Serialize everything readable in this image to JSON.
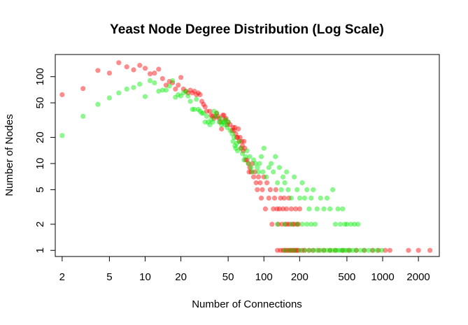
{
  "chart_data": {
    "type": "scatter",
    "title": "Yeast Node Degree Distribution (Log Scale)",
    "xlabel": "Number of Connections",
    "ylabel": "Number of Nodes",
    "x_scale": "log",
    "y_scale": "log",
    "xlim": [
      1.75,
      3000
    ],
    "ylim": [
      0.85,
      180
    ],
    "x_ticks": [
      {
        "value": 2,
        "label": "2"
      },
      {
        "value": 5,
        "label": "5"
      },
      {
        "value": 10,
        "label": "10"
      },
      {
        "value": 20,
        "label": "20"
      },
      {
        "value": 50,
        "label": "50"
      },
      {
        "value": 100,
        "label": "100"
      },
      {
        "value": 200,
        "label": "200"
      },
      {
        "value": 500,
        "label": "500"
      },
      {
        "value": 1000,
        "label": "1000"
      },
      {
        "value": 2000,
        "label": "2000"
      }
    ],
    "y_ticks": [
      {
        "value": 1,
        "label": "1"
      },
      {
        "value": 2,
        "label": "2"
      },
      {
        "value": 5,
        "label": "5"
      },
      {
        "value": 10,
        "label": "10"
      },
      {
        "value": 20,
        "label": "20"
      },
      {
        "value": 50,
        "label": "50"
      },
      {
        "value": 100,
        "label": "100"
      }
    ],
    "grid": false,
    "legend": "none",
    "series": [
      {
        "color": "#ff0000",
        "opacity": 0.45,
        "points": [
          [
            2,
            62
          ],
          [
            3,
            73
          ],
          [
            4,
            118
          ],
          [
            5,
            110
          ],
          [
            6,
            145
          ],
          [
            7,
            130
          ],
          [
            8,
            120
          ],
          [
            9,
            135
          ],
          [
            10,
            125
          ],
          [
            11,
            108
          ],
          [
            12,
            110
          ],
          [
            13,
            122
          ],
          [
            14,
            95
          ],
          [
            15,
            80
          ],
          [
            16,
            88
          ],
          [
            17,
            85
          ],
          [
            18,
            72
          ],
          [
            19,
            80
          ],
          [
            20,
            98
          ],
          [
            21,
            72
          ],
          [
            22,
            68
          ],
          [
            23,
            65
          ],
          [
            24,
            70
          ],
          [
            25,
            65
          ],
          [
            26,
            68
          ],
          [
            27,
            62
          ],
          [
            28,
            65
          ],
          [
            29,
            62
          ],
          [
            30,
            52
          ],
          [
            31,
            48
          ],
          [
            32,
            45
          ],
          [
            33,
            40
          ],
          [
            35,
            40
          ],
          [
            36,
            36
          ],
          [
            37,
            35
          ],
          [
            38,
            33
          ],
          [
            39,
            35
          ],
          [
            40,
            38
          ],
          [
            41,
            35
          ],
          [
            42,
            33
          ],
          [
            43,
            30
          ],
          [
            44,
            25
          ],
          [
            45,
            36
          ],
          [
            46,
            36
          ],
          [
            47,
            32
          ],
          [
            48,
            33
          ],
          [
            49,
            28
          ],
          [
            50,
            30
          ],
          [
            52,
            28
          ],
          [
            54,
            24
          ],
          [
            55,
            26
          ],
          [
            56,
            24
          ],
          [
            57,
            26
          ],
          [
            58,
            22
          ],
          [
            59,
            20
          ],
          [
            60,
            20
          ],
          [
            61,
            25
          ],
          [
            62,
            18
          ],
          [
            63,
            20
          ],
          [
            64,
            15
          ],
          [
            65,
            18
          ],
          [
            66,
            16
          ],
          [
            67,
            14
          ],
          [
            68,
            18
          ],
          [
            69,
            15
          ],
          [
            70,
            11
          ],
          [
            72,
            11
          ],
          [
            74,
            10
          ],
          [
            75,
            8
          ],
          [
            76,
            9
          ],
          [
            78,
            8
          ],
          [
            80,
            10
          ],
          [
            82,
            7
          ],
          [
            84,
            8
          ],
          [
            86,
            6
          ],
          [
            88,
            5
          ],
          [
            90,
            7
          ],
          [
            93,
            6
          ],
          [
            95,
            4
          ],
          [
            97,
            5
          ],
          [
            100,
            7
          ],
          [
            103,
            3
          ],
          [
            106,
            6
          ],
          [
            110,
            4
          ],
          [
            113,
            5
          ],
          [
            117,
            2
          ],
          [
            120,
            3
          ],
          [
            123,
            4
          ],
          [
            126,
            5
          ],
          [
            129,
            3
          ],
          [
            132,
            2
          ],
          [
            135,
            3
          ],
          [
            138,
            4
          ],
          [
            142,
            2
          ],
          [
            145,
            3
          ],
          [
            148,
            4
          ],
          [
            152,
            2
          ],
          [
            155,
            3
          ],
          [
            158,
            2
          ],
          [
            162,
            4
          ],
          [
            165,
            2
          ],
          [
            170,
            3
          ],
          [
            175,
            2
          ],
          [
            180,
            2
          ],
          [
            185,
            3
          ],
          [
            190,
            2
          ],
          [
            195,
            2
          ],
          [
            200,
            3
          ],
          [
            130,
            1
          ],
          [
            138,
            1
          ],
          [
            145,
            1
          ],
          [
            150,
            1
          ],
          [
            155,
            1
          ],
          [
            160,
            1
          ],
          [
            165,
            1
          ],
          [
            170,
            1
          ],
          [
            175,
            1
          ],
          [
            180,
            1
          ],
          [
            185,
            1
          ],
          [
            190,
            1
          ],
          [
            195,
            1
          ],
          [
            210,
            1
          ],
          [
            220,
            1
          ],
          [
            240,
            1
          ],
          [
            260,
            1
          ],
          [
            290,
            1
          ],
          [
            320,
            1
          ],
          [
            360,
            1
          ],
          [
            400,
            1
          ],
          [
            460,
            1
          ],
          [
            520,
            1
          ],
          [
            600,
            1
          ],
          [
            700,
            1
          ],
          [
            820,
            1
          ],
          [
            920,
            1
          ],
          [
            1050,
            1
          ],
          [
            1150,
            1
          ],
          [
            1650,
            1
          ],
          [
            2000,
            1
          ],
          [
            2500,
            1
          ]
        ]
      },
      {
        "color": "#00ee00",
        "opacity": 0.45,
        "points": [
          [
            2,
            21
          ],
          [
            3,
            35
          ],
          [
            4,
            48
          ],
          [
            5,
            57
          ],
          [
            6,
            65
          ],
          [
            7,
            72
          ],
          [
            8,
            75
          ],
          [
            9,
            82
          ],
          [
            10,
            59
          ],
          [
            11,
            90
          ],
          [
            12,
            85
          ],
          [
            13,
            68
          ],
          [
            14,
            70
          ],
          [
            15,
            70
          ],
          [
            16,
            78
          ],
          [
            17,
            90
          ],
          [
            18,
            58
          ],
          [
            19,
            62
          ],
          [
            20,
            60
          ],
          [
            21,
            65
          ],
          [
            22,
            68
          ],
          [
            23,
            60
          ],
          [
            24,
            52
          ],
          [
            25,
            42
          ],
          [
            26,
            42
          ],
          [
            27,
            55
          ],
          [
            28,
            42
          ],
          [
            29,
            40
          ],
          [
            30,
            38
          ],
          [
            31,
            38
          ],
          [
            32,
            30
          ],
          [
            33,
            35
          ],
          [
            34,
            30
          ],
          [
            35,
            28
          ],
          [
            36,
            32
          ],
          [
            37,
            30
          ],
          [
            38,
            40
          ],
          [
            39,
            35
          ],
          [
            40,
            38
          ],
          [
            42,
            30
          ],
          [
            43,
            33
          ],
          [
            44,
            28
          ],
          [
            45,
            30
          ],
          [
            46,
            30
          ],
          [
            47,
            28
          ],
          [
            48,
            32
          ],
          [
            49,
            26
          ],
          [
            50,
            30
          ],
          [
            52,
            24
          ],
          [
            54,
            22
          ],
          [
            55,
            18
          ],
          [
            56,
            20
          ],
          [
            57,
            16
          ],
          [
            58,
            15
          ],
          [
            59,
            17
          ],
          [
            60,
            14
          ],
          [
            62,
            18
          ],
          [
            64,
            15
          ],
          [
            66,
            13
          ],
          [
            68,
            11
          ],
          [
            70,
            12
          ],
          [
            72,
            14
          ],
          [
            74,
            10
          ],
          [
            76,
            12
          ],
          [
            78,
            9
          ],
          [
            80,
            8
          ],
          [
            82,
            11
          ],
          [
            85,
            10
          ],
          [
            88,
            9
          ],
          [
            90,
            8
          ],
          [
            92,
            10
          ],
          [
            95,
            12
          ],
          [
            98,
            8
          ],
          [
            100,
            15
          ],
          [
            105,
            7
          ],
          [
            110,
            9
          ],
          [
            115,
            10
          ],
          [
            120,
            8
          ],
          [
            125,
            12
          ],
          [
            130,
            6
          ],
          [
            135,
            9
          ],
          [
            140,
            5
          ],
          [
            145,
            7
          ],
          [
            150,
            6
          ],
          [
            155,
            8
          ],
          [
            160,
            5
          ],
          [
            170,
            4
          ],
          [
            180,
            7
          ],
          [
            190,
            5
          ],
          [
            200,
            4
          ],
          [
            210,
            6
          ],
          [
            220,
            4
          ],
          [
            230,
            5
          ],
          [
            240,
            3
          ],
          [
            250,
            4
          ],
          [
            260,
            5
          ],
          [
            280,
            3
          ],
          [
            300,
            4
          ],
          [
            320,
            3
          ],
          [
            340,
            4
          ],
          [
            360,
            3
          ],
          [
            380,
            5
          ],
          [
            400,
            2
          ],
          [
            420,
            3
          ],
          [
            440,
            2
          ],
          [
            460,
            3
          ],
          [
            480,
            2
          ],
          [
            500,
            2
          ],
          [
            540,
            2
          ],
          [
            580,
            2
          ],
          [
            620,
            2
          ],
          [
            130,
            2
          ],
          [
            150,
            2
          ],
          [
            170,
            2
          ],
          [
            190,
            2
          ],
          [
            210,
            2
          ],
          [
            230,
            2
          ],
          [
            250,
            2
          ],
          [
            270,
            2
          ],
          [
            150,
            1
          ],
          [
            165,
            1
          ],
          [
            180,
            1
          ],
          [
            200,
            1
          ],
          [
            220,
            1
          ],
          [
            240,
            1
          ],
          [
            260,
            1
          ],
          [
            280,
            1
          ],
          [
            300,
            1
          ],
          [
            320,
            1
          ],
          [
            340,
            1
          ],
          [
            360,
            1
          ],
          [
            380,
            1
          ],
          [
            400,
            1
          ],
          [
            420,
            1
          ],
          [
            440,
            1
          ],
          [
            460,
            1
          ],
          [
            480,
            1
          ],
          [
            500,
            1
          ],
          [
            530,
            1
          ],
          [
            560,
            1
          ],
          [
            600,
            1
          ],
          [
            650,
            1
          ],
          [
            700,
            1
          ],
          [
            760,
            1
          ],
          [
            830,
            1
          ],
          [
            900,
            1
          ],
          [
            980,
            1
          ]
        ]
      }
    ]
  }
}
